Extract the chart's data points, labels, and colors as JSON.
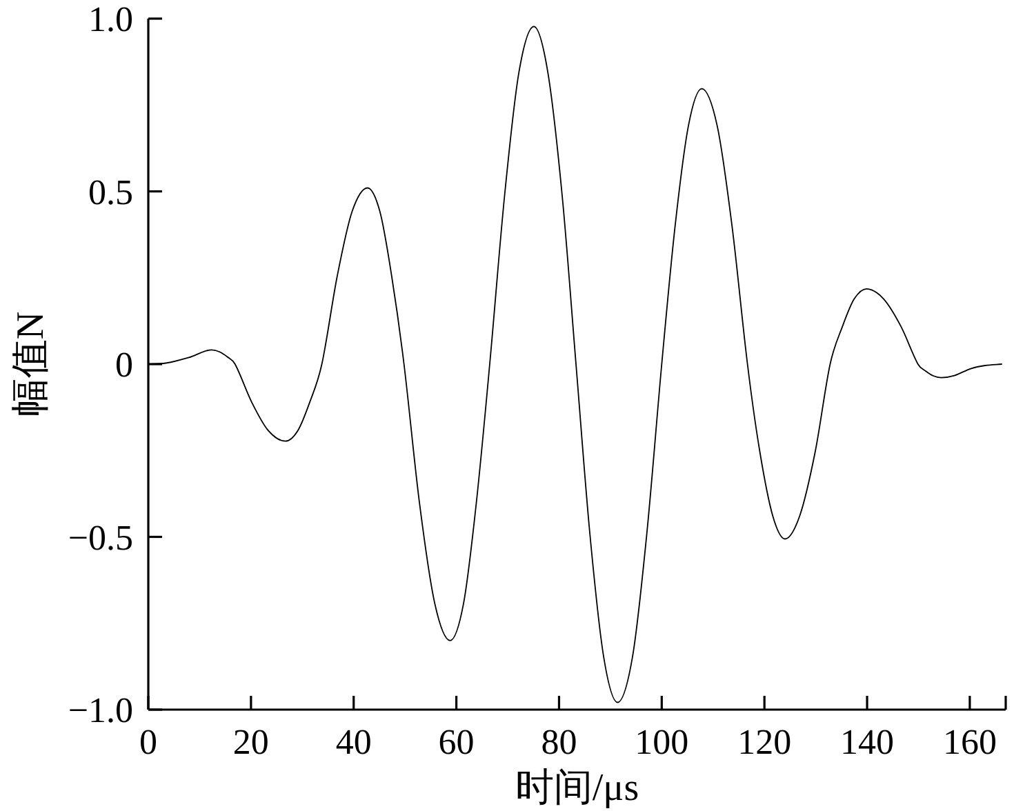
{
  "chart_data": {
    "type": "line",
    "xlabel": "时间/μs",
    "ylabel": "幅值N",
    "color": "#000000",
    "line_style": "solid",
    "x": [
      0,
      3.4,
      7.9,
      12.3,
      13.8,
      15.4,
      16.9,
      20.2,
      23.4,
      26.7,
      29.1,
      31.4,
      33.8,
      36.8,
      39.7,
      42.7,
      45.1,
      47.4,
      49.8,
      52.8,
      55.8,
      58.8,
      61.4,
      63.9,
      66.5,
      69.4,
      72.2,
      75.1,
      77.8,
      80.6,
      83.3,
      86.0,
      88.7,
      91.4,
      94.3,
      97.1,
      100.0,
      102.6,
      105.2,
      107.8,
      110.8,
      113.7,
      116.7,
      119.1,
      121.6,
      124.0,
      126.9,
      129.9,
      132.8,
      135.2,
      137.5,
      139.9,
      143.2,
      146.6,
      149.9,
      151.4,
      152.9,
      154.4,
      157.0,
      160.2,
      163.0,
      166.2
    ],
    "values": [
      0,
      0.003,
      0.019,
      0.041,
      0.036,
      0.021,
      0,
      -0.112,
      -0.193,
      -0.223,
      -0.193,
      -0.112,
      0,
      0.255,
      0.442,
      0.51,
      0.442,
      0.255,
      0,
      -0.4,
      -0.693,
      -0.8,
      -0.693,
      -0.4,
      0,
      0.489,
      0.846,
      0.977,
      0.846,
      0.489,
      0,
      -0.49,
      -0.848,
      -0.979,
      -0.848,
      -0.49,
      0,
      0.399,
      0.69,
      0.797,
      0.69,
      0.399,
      0,
      -0.253,
      -0.438,
      -0.506,
      -0.438,
      -0.253,
      0,
      0.109,
      0.189,
      0.218,
      0.189,
      0.109,
      0,
      -0.02,
      -0.034,
      -0.039,
      -0.033,
      -0.013,
      -0.004,
      0
    ],
    "xlim": [
      0,
      167
    ],
    "ylim": [
      -1,
      1
    ],
    "xticks": [
      0,
      20,
      40,
      60,
      80,
      100,
      120,
      140,
      160,
      {
        "value": 167,
        "label": null
      }
    ],
    "yticks": [
      {
        "value": -1,
        "label": "−1.0"
      },
      {
        "value": -0.5,
        "label": "−0.5"
      },
      0,
      0.5,
      {
        "value": 1,
        "label": "1.0"
      }
    ]
  }
}
